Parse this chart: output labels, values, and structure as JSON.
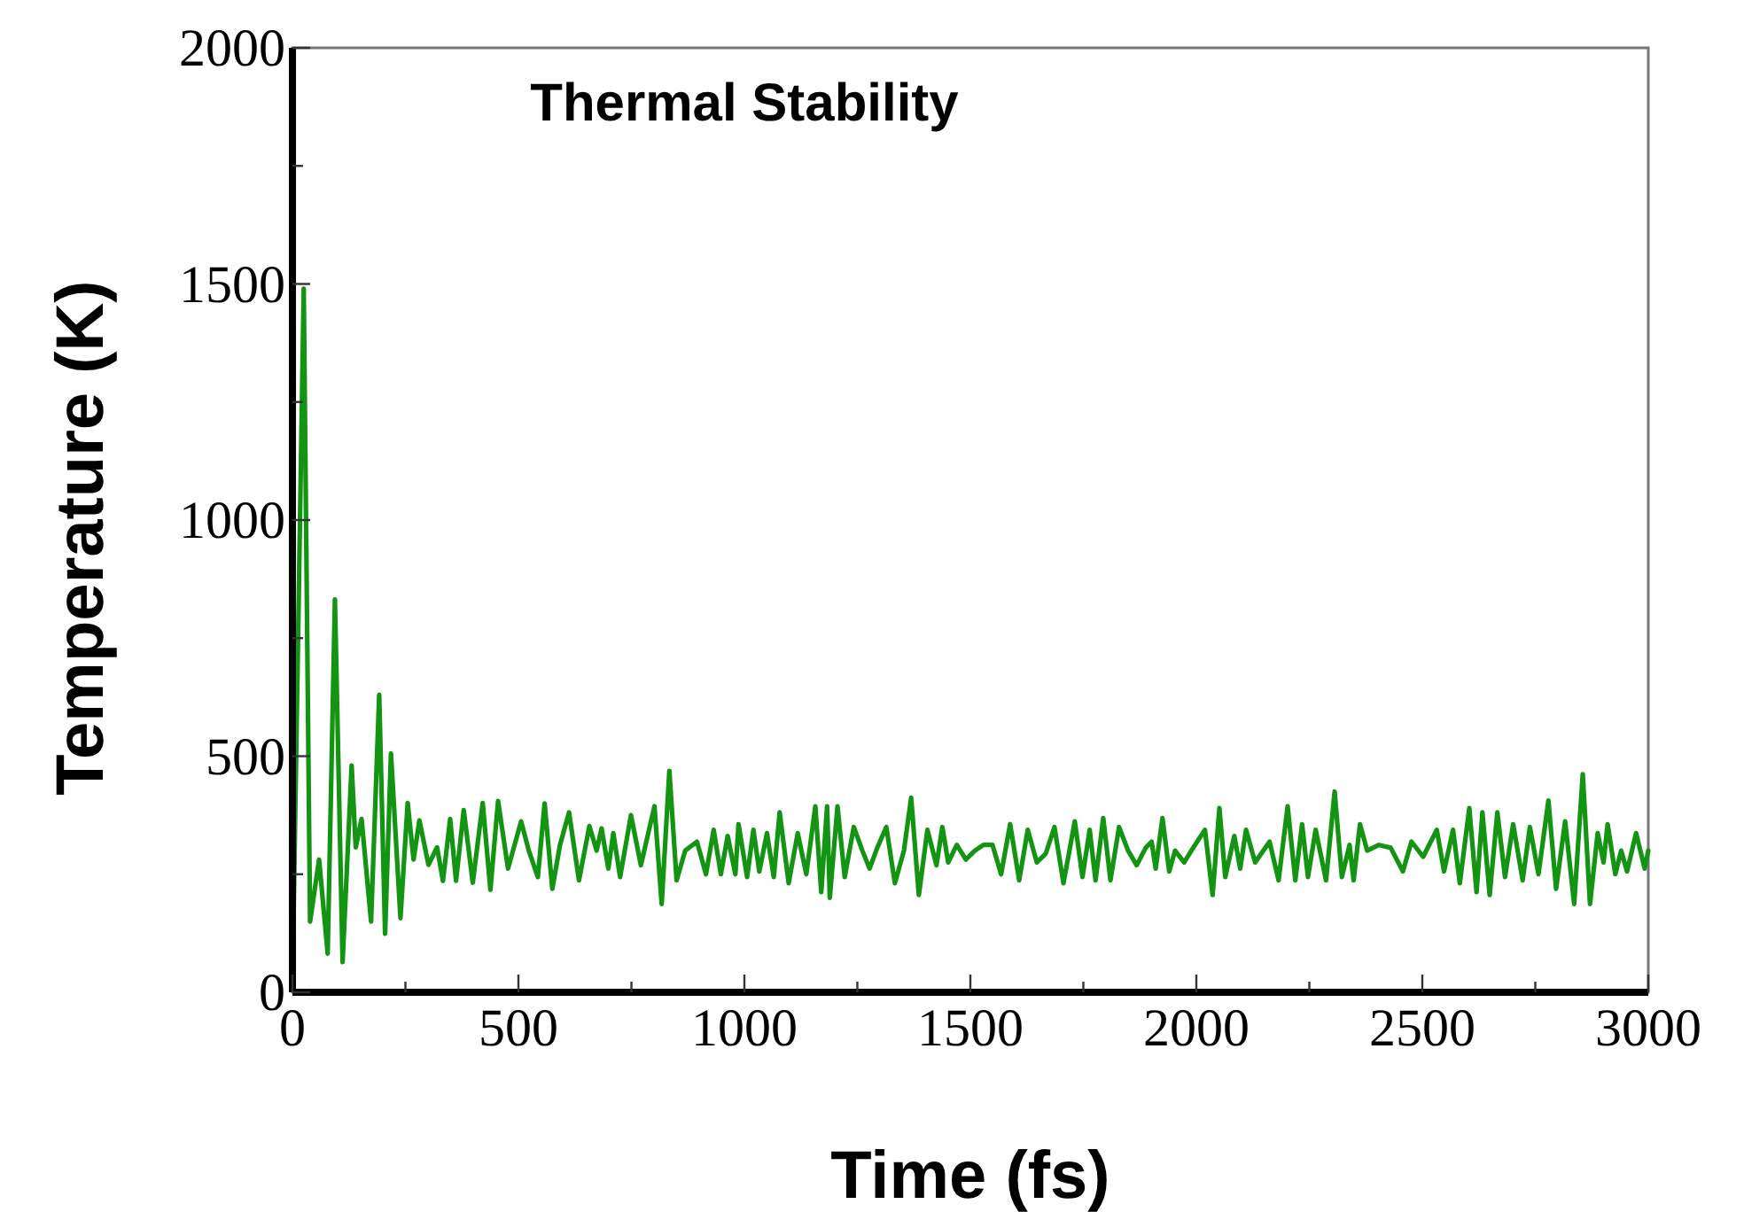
{
  "chart_data": {
    "type": "line",
    "title": "Thermal Stability",
    "xlabel": "Time (fs)",
    "ylabel": "Temperature (K)",
    "xlim": [
      0,
      3000
    ],
    "ylim": [
      0,
      2000
    ],
    "xticks": [
      0,
      {
        "value": 250,
        "label": null
      },
      500,
      {
        "value": 750,
        "label": null
      },
      1000,
      {
        "value": 1250,
        "label": null
      },
      1500,
      {
        "value": 1750,
        "label": null
      },
      2000,
      {
        "value": 2250,
        "label": null
      },
      2500,
      {
        "value": 2750,
        "label": null
      },
      3000
    ],
    "yticks": [
      0,
      {
        "value": 250,
        "label": null
      },
      500,
      {
        "value": 750,
        "label": null
      },
      1000,
      {
        "value": 1250,
        "label": null
      },
      1500,
      {
        "value": 1750,
        "label": null
      },
      2000
    ],
    "grid": false,
    "marker": "none",
    "line_style": "solid",
    "series": [
      {
        "color": "#139413",
        "x": [
          0,
          25,
          39,
          59,
          78,
          94,
          111,
          131,
          140,
          153,
          174,
          192,
          205,
          218,
          239,
          255,
          268,
          281,
          301,
          320,
          333,
          349,
          362,
          379,
          399,
          421,
          438,
          455,
          477,
          506,
          523,
          543,
          558,
          575,
          592,
          612,
          634,
          657,
          673,
          684,
          699,
          710,
          725,
          749,
          771,
          801,
          817,
          834,
          850,
          869,
          895,
          915,
          932,
          948,
          963,
          980,
          987,
          1006,
          1020,
          1033,
          1050,
          1065,
          1078,
          1098,
          1118,
          1137,
          1157,
          1170,
          1183,
          1189,
          1206,
          1222,
          1242,
          1261,
          1277,
          1294,
          1314,
          1333,
          1353,
          1369,
          1386,
          1405,
          1425,
          1438,
          1451,
          1470,
          1490,
          1510,
          1529,
          1549,
          1568,
          1588,
          1608,
          1627,
          1647,
          1667,
          1686,
          1706,
          1731,
          1748,
          1764,
          1777,
          1794,
          1810,
          1829,
          1849,
          1868,
          1888,
          1901,
          1910,
          1925,
          1940,
          1953,
          1973,
          1993,
          2019,
          2036,
          2051,
          2064,
          2084,
          2097,
          2110,
          2130,
          2162,
          2182,
          2202,
          2219,
          2234,
          2247,
          2264,
          2287,
          2306,
          2322,
          2339,
          2348,
          2362,
          2378,
          2404,
          2430,
          2457,
          2476,
          2502,
          2532,
          2548,
          2568,
          2583,
          2604,
          2620,
          2633,
          2649,
          2666,
          2683,
          2701,
          2722,
          2738,
          2757,
          2779,
          2796,
          2816,
          2836,
          2855,
          2871,
          2888,
          2901,
          2910,
          2927,
          2940,
          2953,
          2973,
          2992,
          3000
        ],
        "values": [
          10,
          1490,
          150,
          281,
          82,
          832,
          64,
          480,
          307,
          367,
          150,
          630,
          124,
          506,
          157,
          401,
          281,
          364,
          270,
          307,
          236,
          367,
          236,
          386,
          232,
          401,
          217,
          405,
          262,
          362,
          300,
          244,
          400,
          219,
          312,
          381,
          237,
          352,
          300,
          347,
          262,
          337,
          244,
          375,
          269,
          394,
          187,
          469,
          237,
          300,
          319,
          250,
          344,
          250,
          331,
          250,
          356,
          244,
          344,
          256,
          337,
          244,
          381,
          231,
          337,
          250,
          394,
          212,
          394,
          200,
          394,
          244,
          350,
          300,
          262,
          306,
          350,
          231,
          300,
          412,
          206,
          344,
          269,
          350,
          275,
          312,
          281,
          300,
          312,
          312,
          250,
          356,
          237,
          344,
          275,
          294,
          350,
          231,
          362,
          244,
          344,
          237,
          369,
          237,
          350,
          300,
          269,
          306,
          319,
          262,
          369,
          256,
          300,
          275,
          306,
          344,
          206,
          390,
          244,
          331,
          262,
          344,
          275,
          319,
          237,
          394,
          237,
          356,
          244,
          344,
          237,
          425,
          244,
          312,
          237,
          356,
          300,
          312,
          306,
          256,
          319,
          287,
          344,
          256,
          344,
          231,
          390,
          212,
          381,
          206,
          381,
          244,
          356,
          237,
          350,
          250,
          406,
          219,
          362,
          187,
          462,
          187,
          337,
          275,
          356,
          250,
          300,
          256,
          337,
          262,
          300
        ]
      }
    ]
  }
}
